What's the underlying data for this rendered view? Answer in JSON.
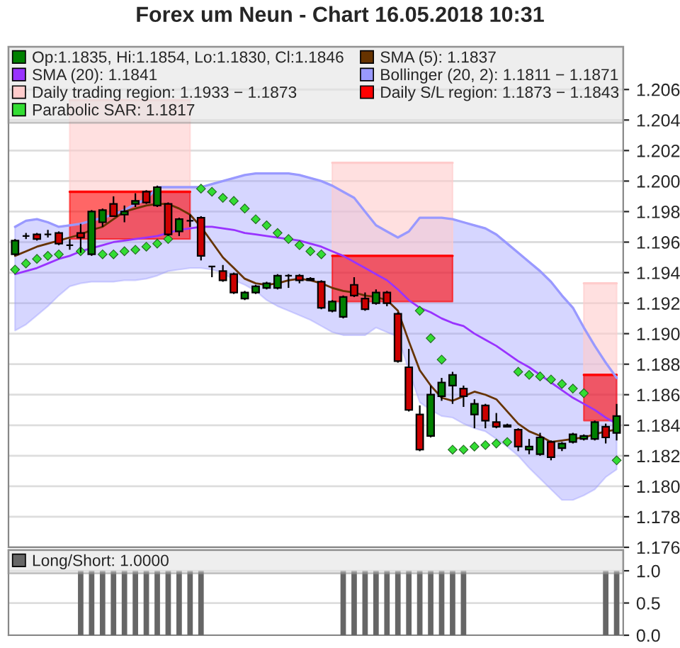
{
  "chart_data": [
    {
      "type": "candlestick",
      "title": "Forex um Neun - Chart 16.05.2018 10:31",
      "categories": [
        null,
        null,
        null,
        null,
        null,
        null,
        null,
        null,
        null,
        null,
        null,
        null,
        null,
        null,
        null,
        null,
        null,
        null,
        null,
        null,
        null,
        null,
        null,
        null,
        null,
        null,
        null,
        null,
        null,
        null,
        null,
        null,
        null,
        null,
        null,
        null,
        null,
        null,
        null,
        null,
        null,
        null,
        null,
        null,
        null,
        null,
        null,
        null,
        null,
        null,
        null,
        null,
        null,
        null,
        null,
        null
      ],
      "ylim": [
        1.176,
        1.2088
      ],
      "yticks": [
        1.176,
        1.178,
        {
          "value": 1.18,
          "label": "1.180"
        },
        1.182,
        1.184,
        1.186,
        1.188,
        {
          "value": 1.19,
          "label": "1.190"
        },
        1.192,
        1.194,
        1.196,
        1.198,
        {
          "value": 1.2,
          "label": "1.200"
        },
        1.202,
        1.204,
        1.206
      ],
      "tick_labels": "y",
      "grid": "y",
      "legend": "top",
      "series": [
        {
          "type": "line",
          "name": "Bollinger (20, 2): 1.1811 − 1.1871",
          "color": "#9999ff",
          "values": [
            1.197,
            1.1974,
            1.1975,
            1.1973,
            1.197,
            1.1971,
            1.1972,
            1.1974,
            1.1976,
            1.1978,
            1.1981,
            1.1985,
            1.1988,
            1.1996,
            1.1996,
            1.1996,
            1.1996,
            1.1996,
            1.1998,
            1.2,
            1.2002,
            1.2004,
            1.2005,
            1.2005,
            1.2005,
            1.2005,
            1.2004,
            1.2002,
            1.2,
            1.1997,
            1.1993,
            1.1989,
            1.198,
            1.1971,
            1.1967,
            1.1963,
            1.1967,
            1.1976,
            1.1976,
            1.1976,
            1.1975,
            1.1973,
            1.1971,
            1.1969,
            1.1965,
            1.1959,
            1.1953,
            1.1947,
            1.1941,
            1.1934,
            1.1925,
            1.1917,
            1.1904,
            1.1892,
            1.1881,
            1.1871
          ],
          "upper": [
            1.197,
            1.1974,
            1.1975,
            1.1973,
            1.197,
            1.1971,
            1.1972,
            1.1974,
            1.1976,
            1.1978,
            1.1981,
            1.1985,
            1.1988,
            1.1996,
            1.1996,
            1.1996,
            1.1996,
            1.1996,
            1.1998,
            1.2,
            1.2002,
            1.2004,
            1.2005,
            1.2005,
            1.2005,
            1.2005,
            1.2004,
            1.2002,
            1.2,
            1.1997,
            1.1993,
            1.1989,
            1.198,
            1.1971,
            1.1967,
            1.1963,
            1.1967,
            1.1976,
            1.1976,
            1.1976,
            1.1975,
            1.1973,
            1.1971,
            1.1969,
            1.1965,
            1.1959,
            1.1953,
            1.1947,
            1.1941,
            1.1934,
            1.1925,
            1.1917,
            1.1904,
            1.1892,
            1.1881,
            1.1871
          ],
          "lower": [
            1.1902,
            1.1906,
            1.1912,
            1.1918,
            1.1925,
            1.1931,
            1.1933,
            1.1934,
            1.1934,
            1.1934,
            1.1935,
            1.1935,
            1.1936,
            1.1938,
            1.1941,
            1.1942,
            1.1943,
            1.1943,
            1.1942,
            1.194,
            1.1935,
            1.1932,
            1.1928,
            1.1922,
            1.1918,
            1.1915,
            1.1912,
            1.1909,
            1.1905,
            1.1901,
            1.1899,
            1.1899,
            1.1899,
            1.1904,
            1.1901,
            1.1898,
            1.1876,
            1.1855,
            1.185,
            1.1846,
            1.1845,
            1.1841,
            1.1838,
            1.1836,
            1.1831,
            1.1826,
            1.182,
            1.1812,
            1.1805,
            1.1798,
            1.1791,
            1.1791,
            1.1794,
            1.1798,
            1.1806,
            1.1811
          ]
        },
        {
          "type": "line",
          "name": "Daily trading region: 1.1933 − 1.1873",
          "color": "#ffcccc",
          "values": [
            null,
            null,
            null,
            null,
            null,
            1.2053,
            1.2053,
            1.2053,
            1.2053,
            1.2053,
            1.2053,
            1.2053,
            1.2053,
            1.2053,
            1.2053,
            1.2053,
            1.2053,
            null,
            null,
            null,
            null,
            null,
            null,
            null,
            null,
            null,
            null,
            null,
            null,
            1.2012,
            1.2012,
            1.2012,
            1.2012,
            1.2012,
            1.2012,
            1.2012,
            1.2012,
            1.2012,
            1.2012,
            1.2012,
            1.2012,
            null,
            null,
            null,
            null,
            null,
            null,
            null,
            null,
            null,
            null,
            null,
            1.1933,
            1.1933,
            1.1933,
            1.1933
          ],
          "upper": [
            null,
            null,
            null,
            null,
            null,
            1.2053,
            1.2053,
            1.2053,
            1.2053,
            1.2053,
            1.2053,
            1.2053,
            1.2053,
            1.2053,
            1.2053,
            1.2053,
            1.2053,
            null,
            null,
            null,
            null,
            null,
            null,
            null,
            null,
            null,
            null,
            null,
            null,
            1.2012,
            1.2012,
            1.2012,
            1.2012,
            1.2012,
            1.2012,
            1.2012,
            1.2012,
            1.2012,
            1.2012,
            1.2012,
            1.2012,
            null,
            null,
            null,
            null,
            null,
            null,
            null,
            null,
            null,
            null,
            null,
            1.1933,
            1.1933,
            1.1933,
            1.1933
          ],
          "lower": [
            null,
            null,
            null,
            null,
            null,
            1.1993,
            1.1993,
            1.1993,
            1.1993,
            1.1993,
            1.1993,
            1.1993,
            1.1993,
            1.1993,
            1.1993,
            1.1993,
            1.1993,
            null,
            null,
            null,
            null,
            null,
            null,
            null,
            null,
            null,
            null,
            null,
            null,
            1.1951,
            1.1951,
            1.1951,
            1.1951,
            1.1951,
            1.1951,
            1.1951,
            1.1951,
            1.1951,
            1.1951,
            1.1951,
            1.1951,
            null,
            null,
            null,
            null,
            null,
            null,
            null,
            null,
            null,
            null,
            null,
            1.1873,
            1.1873,
            1.1873,
            1.1873
          ]
        },
        {
          "type": "line",
          "name": "Daily S/L region: 1.1873 − 1.1843",
          "color": "#ff0000",
          "values": [
            null,
            null,
            null,
            null,
            null,
            1.1993,
            1.1993,
            1.1993,
            1.1993,
            1.1993,
            1.1993,
            1.1993,
            1.1993,
            1.1993,
            1.1993,
            1.1993,
            1.1993,
            null,
            null,
            null,
            null,
            null,
            null,
            null,
            null,
            null,
            null,
            null,
            null,
            1.1951,
            1.1951,
            1.1951,
            1.1951,
            1.1951,
            1.1951,
            1.1951,
            1.1951,
            1.1951,
            1.1951,
            1.1951,
            1.1951,
            null,
            null,
            null,
            null,
            null,
            null,
            null,
            null,
            null,
            null,
            null,
            1.1873,
            1.1873,
            1.1873,
            1.1873
          ],
          "upper": [
            null,
            null,
            null,
            null,
            null,
            1.1993,
            1.1993,
            1.1993,
            1.1993,
            1.1993,
            1.1993,
            1.1993,
            1.1993,
            1.1993,
            1.1993,
            1.1993,
            1.1993,
            null,
            null,
            null,
            null,
            null,
            null,
            null,
            null,
            null,
            null,
            null,
            null,
            1.1951,
            1.1951,
            1.1951,
            1.1951,
            1.1951,
            1.1951,
            1.1951,
            1.1951,
            1.1951,
            1.1951,
            1.1951,
            1.1951,
            null,
            null,
            null,
            null,
            null,
            null,
            null,
            null,
            null,
            null,
            null,
            1.1873,
            1.1873,
            1.1873,
            1.1873
          ],
          "lower": [
            null,
            null,
            null,
            null,
            null,
            1.1962,
            1.1962,
            1.1962,
            1.1962,
            1.1962,
            1.1962,
            1.1962,
            1.1962,
            1.1962,
            1.1962,
            1.1962,
            1.1962,
            null,
            null,
            null,
            null,
            null,
            null,
            null,
            null,
            null,
            null,
            null,
            null,
            1.1921,
            1.1921,
            1.1921,
            1.1921,
            1.1921,
            1.1921,
            1.1921,
            1.1921,
            1.1921,
            1.1921,
            1.1921,
            1.1921,
            null,
            null,
            null,
            null,
            null,
            null,
            null,
            null,
            null,
            null,
            null,
            1.1843,
            1.1843,
            1.1843,
            1.1843
          ]
        },
        {
          "type": "line",
          "name": "SMA (20): 1.1841",
          "color": "#9933ff",
          "values": [
            1.1939,
            1.1941,
            1.1943,
            1.1946,
            1.1949,
            1.1951,
            1.1954,
            1.1956,
            1.1958,
            1.196,
            1.1961,
            1.1962,
            1.1963,
            1.1964,
            1.1966,
            1.1968,
            1.1969,
            1.197,
            1.197,
            1.1969,
            1.1968,
            1.1966,
            1.1965,
            1.1964,
            1.1963,
            1.1962,
            1.1961,
            1.1959,
            1.1957,
            1.1954,
            1.1951,
            1.1947,
            1.1943,
            1.1939,
            1.1935,
            1.1929,
            1.1922,
            1.1917,
            1.1914,
            1.191,
            1.1907,
            1.1905,
            1.19,
            1.1896,
            1.1892,
            1.1887,
            1.1882,
            1.1878,
            1.1873,
            1.1868,
            1.1863,
            1.1858,
            1.1854,
            1.185,
            1.1845,
            1.1841
          ]
        },
        {
          "type": "line",
          "name": "SMA (5): 1.1837",
          "color": "#663300",
          "values": [
            1.1951,
            1.1954,
            1.1957,
            1.1959,
            1.1961,
            1.1963,
            1.1965,
            1.1968,
            1.197,
            1.1975,
            1.198,
            1.1982,
            1.1984,
            1.1985,
            1.1985,
            1.1982,
            1.1978,
            1.197,
            1.196,
            1.195,
            1.1943,
            1.1936,
            1.1933,
            1.1932,
            1.1933,
            1.1935,
            1.1936,
            1.1935,
            1.1933,
            1.193,
            1.1928,
            1.1927,
            1.1925,
            1.1924,
            1.1922,
            1.1915,
            1.1895,
            1.1876,
            1.1866,
            1.1858,
            1.1856,
            1.1859,
            1.1862,
            1.186,
            1.1857,
            1.1849,
            1.1841,
            1.1836,
            1.1833,
            1.1829,
            1.183,
            1.1831,
            1.1832,
            1.1834,
            1.1836,
            1.1837
          ]
        },
        {
          "type": "scatter",
          "name": "Parabolic SAR: 1.1817",
          "color": "#33dd33",
          "marker": "diamond",
          "values": [
            1.1942,
            1.1946,
            1.1949,
            1.1951,
            1.1952,
            null,
            1.1954,
            null,
            1.1952,
            1.1952,
            1.1954,
            1.1955,
            1.1957,
            1.1959,
            1.1962,
            null,
            null,
            1.1995,
            1.1993,
            1.1989,
            1.1987,
            1.1982,
            1.1975,
            1.1971,
            1.1966,
            1.1962,
            1.1958,
            1.1954,
            1.1952,
            null,
            null,
            null,
            null,
            null,
            null,
            null,
            null,
            1.1915,
            1.1897,
            1.1883,
            1.1824,
            1.1824,
            1.1826,
            1.1827,
            1.1828,
            1.1829,
            1.1875,
            1.1873,
            1.1872,
            1.187,
            1.1867,
            1.1864,
            1.1861,
            null,
            null,
            1.1817
          ]
        },
        {
          "type": "candlestick",
          "name": "Op:1.1835, Hi:1.1854, Lo:1.1830, Cl:1.1846",
          "color": "#008000",
          "ohlc": [
            [
              1.1952,
              1.1962,
              1.1951,
              1.1961
            ],
            [
              1.1964,
              1.1966,
              1.1962,
              1.1964
            ],
            [
              1.1965,
              1.1966,
              1.1961,
              1.1962
            ],
            [
              1.1965,
              1.1968,
              1.1963,
              1.1965
            ],
            [
              1.1966,
              1.1967,
              1.1958,
              1.1959
            ],
            [
              1.1958,
              1.1962,
              1.1955,
              1.1958
            ],
            [
              1.1966,
              1.1972,
              1.1953,
              1.1963
            ],
            [
              1.1952,
              1.1981,
              1.1951,
              1.198
            ],
            [
              1.1973,
              1.1982,
              1.197,
              1.1981
            ],
            [
              1.1985,
              1.199,
              1.1977,
              1.1977
            ],
            [
              1.1978,
              1.1984,
              1.1973,
              1.198
            ],
            [
              1.1985,
              1.1992,
              1.1983,
              1.1987
            ],
            [
              1.1993,
              1.1994,
              1.1985,
              1.1986
            ],
            [
              1.1984,
              1.1997,
              1.1983,
              1.1996
            ],
            [
              1.1985,
              1.1986,
              1.1964,
              1.1965
            ],
            [
              1.1967,
              1.1976,
              1.1964,
              1.1975
            ],
            [
              1.1974,
              1.1978,
              1.197,
              1.1974
            ],
            [
              1.1976,
              1.1977,
              1.1948,
              1.1951
            ],
            [
              1.1944,
              1.1944,
              1.1937,
              1.1944
            ],
            [
              1.1941,
              1.1945,
              1.1934,
              1.1935
            ],
            [
              1.1939,
              1.194,
              1.1926,
              1.1927
            ],
            [
              1.1923,
              1.1928,
              1.1922,
              1.1927
            ],
            [
              1.1927,
              1.1932,
              1.1926,
              1.1931
            ],
            [
              1.193,
              1.1934,
              1.1929,
              1.1933
            ],
            [
              1.193,
              1.1939,
              1.1929,
              1.1938
            ],
            [
              1.1938,
              1.1939,
              1.193,
              1.1938
            ],
            [
              1.1938,
              1.1939,
              1.1933,
              1.1935
            ],
            [
              1.1936,
              1.1937,
              1.1935,
              1.1935
            ],
            [
              1.1934,
              1.1935,
              1.1916,
              1.1917
            ],
            [
              1.1915,
              1.1922,
              1.1914,
              1.1921
            ],
            [
              1.1911,
              1.1925,
              1.191,
              1.1924
            ],
            [
              1.1932,
              1.1937,
              1.1924,
              1.1925
            ],
            [
              1.1923,
              1.1927,
              1.1915,
              1.1916
            ],
            [
              1.192,
              1.1929,
              1.1919,
              1.1927
            ],
            [
              1.1927,
              1.1928,
              1.1918,
              1.192
            ],
            [
              1.1913,
              1.1914,
              1.1881,
              1.1882
            ],
            [
              1.1878,
              1.189,
              1.1849,
              1.185
            ],
            [
              1.1847,
              1.1853,
              1.1823,
              1.1824
            ],
            [
              1.1833,
              1.1866,
              1.1832,
              1.186
            ],
            [
              1.1859,
              1.1871,
              1.1856,
              1.1868
            ],
            [
              1.1866,
              1.1875,
              1.1854,
              1.1873
            ],
            [
              1.1864,
              1.1866,
              1.1852,
              1.1859
            ],
            [
              1.1847,
              1.1857,
              1.1838,
              1.1854
            ],
            [
              1.1853,
              1.1854,
              1.1838,
              1.1843
            ],
            [
              1.1842,
              1.1848,
              1.1838,
              1.1839
            ],
            [
              1.184,
              1.1841,
              1.1839,
              1.1839
            ],
            [
              1.1837,
              1.1838,
              1.1823,
              1.1826
            ],
            [
              1.1824,
              1.1831,
              1.1821,
              1.1826
            ],
            [
              1.1821,
              1.1835,
              1.182,
              1.1832
            ],
            [
              1.1829,
              1.183,
              1.1817,
              1.1819
            ],
            [
              1.1825,
              1.1829,
              1.1823,
              1.1828
            ],
            [
              1.1829,
              1.1835,
              1.1828,
              1.1834
            ],
            [
              1.1831,
              1.1834,
              1.183,
              1.1833
            ],
            [
              1.1831,
              1.1843,
              1.183,
              1.1842
            ],
            [
              1.1839,
              1.1841,
              1.1828,
              1.1832
            ],
            [
              1.1835,
              1.1854,
              1.183,
              1.1846
            ]
          ],
          "colors": [
            "#008000",
            "#000000",
            "#cc0000",
            "#000000",
            "#cc0000",
            "#000000",
            "#cc0000",
            "#008000",
            "#008000",
            "#cc0000",
            "#008000",
            "#008000",
            "#cc0000",
            "#008000",
            "#cc0000",
            "#008000",
            "#000000",
            "#cc0000",
            "#000000",
            "#cc0000",
            "#cc0000",
            "#008000",
            "#008000",
            "#008000",
            "#008000",
            "#000000",
            "#cc0000",
            "#cc0000",
            "#cc0000",
            "#008000",
            "#008000",
            "#cc0000",
            "#cc0000",
            "#008000",
            "#cc0000",
            "#cc0000",
            "#cc0000",
            "#cc0000",
            "#008000",
            "#008000",
            "#008000",
            "#cc0000",
            "#008000",
            "#cc0000",
            "#cc0000",
            "#cc0000",
            "#cc0000",
            "#008000",
            "#008000",
            "#cc0000",
            "#008000",
            "#008000",
            "#008000",
            "#008000",
            "#cc0000",
            "#008000"
          ]
        }
      ]
    },
    {
      "type": "bar",
      "categories": [
        null,
        null,
        null,
        null,
        null,
        null,
        null,
        null,
        null,
        null,
        null,
        null,
        null,
        null,
        null,
        null,
        null,
        null,
        null,
        null,
        null,
        null,
        null,
        null,
        null,
        null,
        null,
        null,
        null,
        null,
        null,
        null,
        null,
        null,
        null,
        null,
        null,
        null,
        null,
        null,
        null,
        null,
        null,
        null,
        null,
        null,
        null,
        null,
        null,
        null,
        null,
        null,
        null,
        null,
        null,
        null
      ],
      "ylim": [
        0,
        1.32
      ],
      "yticks": [
        {
          "value": 0,
          "label": "0.0"
        },
        0.5,
        {
          "value": 1,
          "label": "1.0"
        }
      ],
      "tick_labels": "y",
      "grid": "y",
      "legend": "top",
      "series": [
        {
          "name": "Long/Short: 1.0000",
          "color": "#666666",
          "values": [
            0,
            0,
            0,
            0,
            0,
            0,
            1,
            1,
            1,
            1,
            1,
            1,
            1,
            1,
            1,
            1,
            1,
            1,
            0,
            0,
            0,
            0,
            0,
            0,
            0,
            0,
            0,
            0,
            0,
            0,
            1,
            1,
            1,
            1,
            1,
            1,
            1,
            1,
            1,
            1,
            1,
            1,
            0,
            0,
            0,
            0,
            0,
            0,
            0,
            0,
            0,
            0,
            0,
            0,
            1,
            1
          ]
        }
      ]
    }
  ]
}
